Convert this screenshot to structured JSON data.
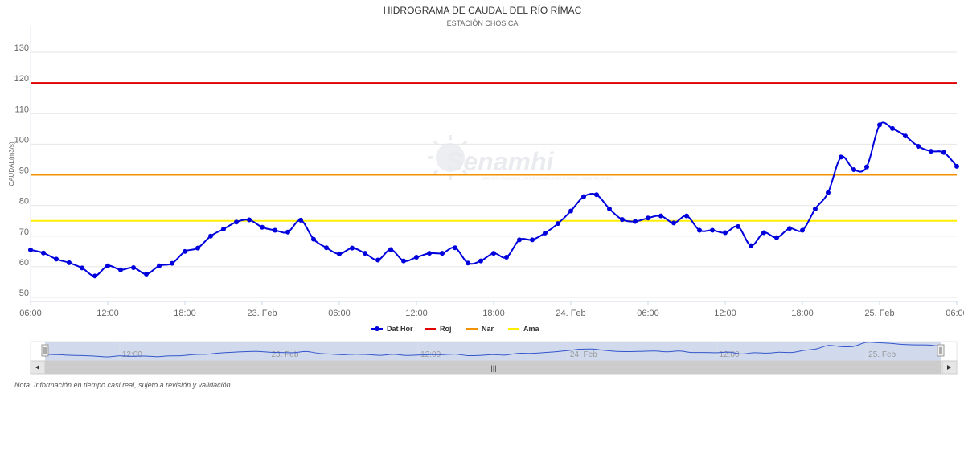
{
  "chart_data": {
    "type": "line",
    "title": "HIDROGRAMA DE CAUDAL DEL RÍO RÍMAC",
    "subtitle": "ESTACIÓN CHOSICA",
    "ylabel": "CAUDAL(m3/s)",
    "ylim": [
      50,
      130
    ],
    "yticks": [
      50,
      60,
      70,
      80,
      90,
      100,
      110,
      120,
      130
    ],
    "xlim": [
      "2020-02-22 06:00",
      "2020-02-25 06:00"
    ],
    "xticks": [
      {
        "t": "2020-02-22 06:00",
        "label": "06:00"
      },
      {
        "t": "2020-02-22 12:00",
        "label": "12:00"
      },
      {
        "t": "2020-02-22 18:00",
        "label": "18:00"
      },
      {
        "t": "2020-02-23 00:00",
        "label": "23. Feb"
      },
      {
        "t": "2020-02-23 06:00",
        "label": "06:00"
      },
      {
        "t": "2020-02-23 12:00",
        "label": "12:00"
      },
      {
        "t": "2020-02-23 18:00",
        "label": "18:00"
      },
      {
        "t": "2020-02-24 00:00",
        "label": "24. Feb"
      },
      {
        "t": "2020-02-24 06:00",
        "label": "06:00"
      },
      {
        "t": "2020-02-24 12:00",
        "label": "12:00"
      },
      {
        "t": "2020-02-24 18:00",
        "label": "18:00"
      },
      {
        "t": "2020-02-25 00:00",
        "label": "25. Feb"
      },
      {
        "t": "2020-02-25 06:00",
        "label": "06:00"
      }
    ],
    "grid": true,
    "legend_position": "bottom-center",
    "series": [
      {
        "name": "Dat Hor",
        "color": "#0000dd",
        "type": "line",
        "x": [
          "2020-02-22 06:00",
          "2020-02-22 07:00",
          "2020-02-22 08:00",
          "2020-02-22 09:00",
          "2020-02-22 10:00",
          "2020-02-22 11:00",
          "2020-02-22 12:00",
          "2020-02-22 13:00",
          "2020-02-22 14:00",
          "2020-02-22 15:00",
          "2020-02-22 16:00",
          "2020-02-22 17:00",
          "2020-02-22 18:00",
          "2020-02-22 19:00",
          "2020-02-22 20:00",
          "2020-02-22 21:00",
          "2020-02-22 22:00",
          "2020-02-22 23:00",
          "2020-02-23 00:00",
          "2020-02-23 01:00",
          "2020-02-23 02:00",
          "2020-02-23 03:00",
          "2020-02-23 04:00",
          "2020-02-23 05:00",
          "2020-02-23 06:00",
          "2020-02-23 07:00",
          "2020-02-23 08:00",
          "2020-02-23 09:00",
          "2020-02-23 10:00",
          "2020-02-23 11:00",
          "2020-02-23 12:00",
          "2020-02-23 13:00",
          "2020-02-23 14:00",
          "2020-02-23 15:00",
          "2020-02-23 16:00",
          "2020-02-23 17:00",
          "2020-02-23 18:00",
          "2020-02-23 19:00",
          "2020-02-23 20:00",
          "2020-02-23 21:00",
          "2020-02-23 22:00",
          "2020-02-23 23:00",
          "2020-02-24 00:00",
          "2020-02-24 01:00",
          "2020-02-24 02:00",
          "2020-02-24 03:00",
          "2020-02-24 04:00",
          "2020-02-24 05:00",
          "2020-02-24 06:00",
          "2020-02-24 07:00",
          "2020-02-24 08:00",
          "2020-02-24 09:00",
          "2020-02-24 10:00",
          "2020-02-24 11:00",
          "2020-02-24 12:00",
          "2020-02-24 13:00",
          "2020-02-24 14:00",
          "2020-02-24 15:00",
          "2020-02-24 16:00",
          "2020-02-24 17:00",
          "2020-02-24 18:00",
          "2020-02-24 19:00",
          "2020-02-24 20:00",
          "2020-02-24 21:00",
          "2020-02-24 22:00",
          "2020-02-24 23:00",
          "2020-02-25 00:00",
          "2020-02-25 01:00",
          "2020-02-25 02:00",
          "2020-02-25 03:00",
          "2020-02-25 04:00",
          "2020-02-25 05:00",
          "2020-02-25 06:00"
        ],
        "values": [
          65.5,
          64.5,
          62.5,
          61.3,
          59.6,
          57,
          60.3,
          59,
          59.7,
          57.6,
          60.3,
          61.1,
          65,
          66.1,
          70,
          72.3,
          74.6,
          75.3,
          72.9,
          71.9,
          71.3,
          75.2,
          69,
          66.2,
          64.2,
          66.1,
          64.4,
          62.2,
          65.6,
          61.9,
          63.1,
          64.4,
          64.4,
          66.2,
          61.2,
          61.9,
          64.4,
          63.1,
          68.8,
          68.8,
          71,
          74.1,
          78.2,
          82.9,
          83.5,
          78.9,
          75.4,
          74.8,
          75.9,
          76.6,
          74.3,
          76.6,
          71.9,
          71.9,
          71.1,
          73.1,
          66.9,
          71.1,
          69.5,
          72.5,
          71.9,
          78.9,
          84.2,
          95.8,
          91.7,
          92.6,
          106.3,
          105.1,
          102.7,
          99.3,
          97.7,
          97.3,
          92.8
        ]
      },
      {
        "name": "Roj",
        "color": "#e00000",
        "type": "threshold",
        "value": 120
      },
      {
        "name": "Nar",
        "color": "#f39200",
        "type": "threshold",
        "value": 90
      },
      {
        "name": "Ama",
        "color": "#ffee00",
        "type": "threshold",
        "value": 75
      }
    ]
  },
  "watermark": {
    "brand": "Senamhi",
    "tagline": "SERVICIO NACIONAL DE METEOROLOGÍA E HIDROLOGÍA DEL PERÚ"
  },
  "navigator": {
    "labels": [
      "12:00",
      "23. Feb",
      "12:00",
      "24. Feb",
      "12:00",
      "25. Feb"
    ],
    "scrollbar_grip": "|||"
  },
  "note": "Nota: Información en tiempo casi real, sujeto a revisión y validación"
}
